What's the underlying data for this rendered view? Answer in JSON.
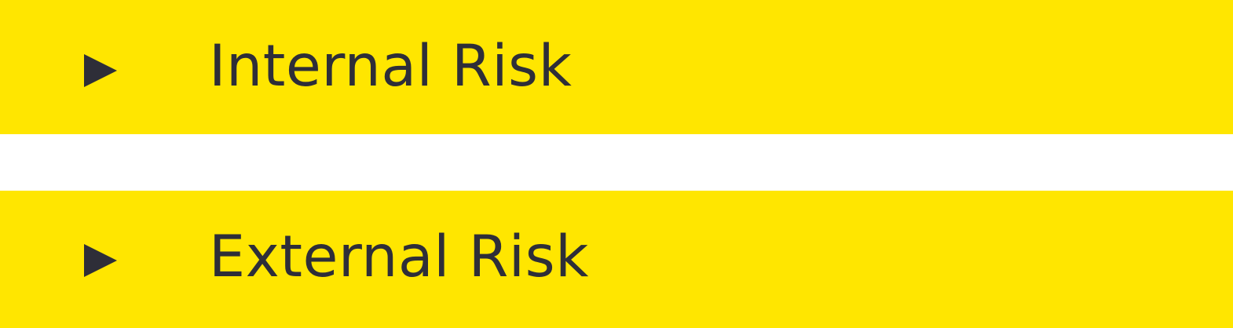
{
  "accordion": {
    "items": [
      {
        "label": "Internal Risk",
        "icon": "caret-right-icon",
        "expanded": false
      },
      {
        "label": "External Risk",
        "icon": "caret-right-icon",
        "expanded": false
      }
    ]
  },
  "colors": {
    "header_background": "#ffe600",
    "text": "#2e2e38",
    "page_background": "#ffffff"
  }
}
